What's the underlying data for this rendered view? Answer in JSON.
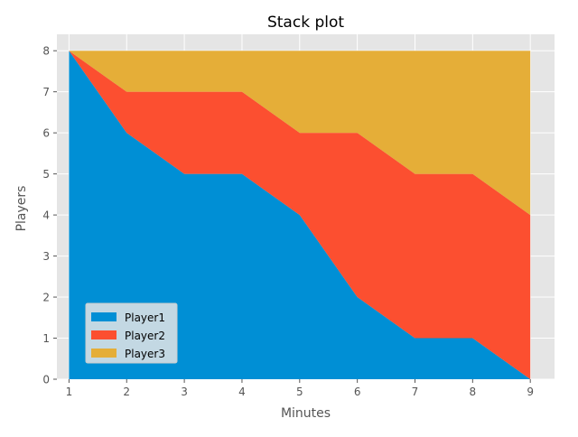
{
  "chart_data": {
    "type": "area",
    "stacked": true,
    "title": "Stack plot",
    "xlabel": "Minutes",
    "ylabel": "Players",
    "x": [
      1,
      2,
      3,
      4,
      5,
      6,
      7,
      8,
      9
    ],
    "series": [
      {
        "name": "Player1",
        "values": [
          8,
          6,
          5,
          5,
          4,
          2,
          1,
          1,
          0
        ],
        "color": "#008fd5"
      },
      {
        "name": "Player2",
        "values": [
          0,
          1,
          2,
          2,
          2,
          4,
          4,
          4,
          4
        ],
        "color": "#fc4f30"
      },
      {
        "name": "Player3",
        "values": [
          0,
          1,
          1,
          1,
          2,
          2,
          3,
          3,
          4
        ],
        "color": "#e5ae38"
      }
    ],
    "xticks": [
      1,
      2,
      3,
      4,
      5,
      6,
      7,
      8,
      9
    ],
    "yticks": [
      0,
      1,
      2,
      3,
      4,
      5,
      6,
      7,
      8
    ],
    "xlim": [
      0.79,
      9.42
    ],
    "ylim": [
      0,
      8.4
    ],
    "grid": true,
    "legend_position": "lower-left",
    "background": "#e5e5e5"
  }
}
